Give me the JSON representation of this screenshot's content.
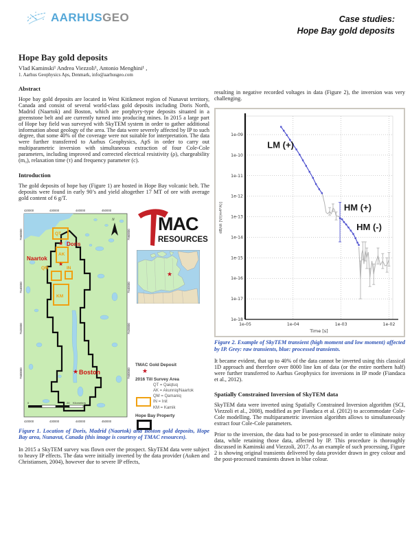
{
  "header": {
    "brand_primary": "AARHUS",
    "brand_secondary": "GEO",
    "brand_primary_color": "#54a7d8",
    "brand_secondary_color": "#8f8f8f",
    "logo_icon": "aarhusgeo-sketch-icon",
    "doc_title_line1": "Case studies:",
    "doc_title_line2": "Hope Bay gold deposits"
  },
  "article": {
    "title": "Hope Bay gold deposits",
    "authors": "Vlad Kaminski¹ Andrea Viezzoli¹, Antonio Menghini¹ ,",
    "affiliation": "1. Aarhus Geophysics Aps, Denmark, info@aarhusgeo.com"
  },
  "sections": {
    "abstract_heading": "Abstract",
    "abstract_text": "Hope bay gold deposits are located in West Kitikmeot region of Nunavut territory, Canada and consist of several world-class gold deposits including Doris North, Madrid (Naartok) and Boston, which are porphyry-type deposits situated in a greenstone belt and are currently turned into producing mines. In 2015 a large part of Hope bay field was surveyed with SkyTEM system in order to gather additional information about geology of the area. The data were severely affected by IP to such degree, that some 40% of the coverage were not suitable for interpretation. The data were further transferred to Aarhus Geophysics, ApS in order to carry out multiparametric inversion with simultaneous extraction of four Cole-Cole parameters, including improved and corrected electrical resistivity (ρ), chargeability (m₀), relaxation time (τ) and frequency parameter (c).",
    "intro_heading": "Introduction",
    "intro_text": "The gold deposits of hope bay (Figure 1) are hosted in Hope Bay volcanic belt. The deposits were found in early 90’s and yield altogether 17 MT of ore with average gold content of 6 g/T.",
    "left_para2": "In 2015 a SkyTEM survey was flown over the prospect. SkyTEM data were subject to heavy IP effects. The data were initially inverted by the data provider (Auken and Christiansen, 2004), however due to severe IP effects,",
    "right_para1": "resulting in negative recorded voltages in data (Figure 2), the inversion was very challenging.",
    "right_para2": "It became evident, that up to 40% of the data cannot be inverted using this classical 1D approach and therefore over 8000 line km of data (or the entire northern half) were further transferred to Aarhus Geophysics for inversions in IP mode (Fiandaca et al., 2012).",
    "sci_heading": "Spatially Constrained Inversion of SkyTEM data",
    "right_para3": "SkyTEM data were inverted using Spatially Constrained Inversion algorithm (SCI, Viezzoli et al., 2008), modified as per Fiandaca et al. (2012) to accommodate Cole-Cole modelling. The multiparametric inversion algorithm allows to simultaneously extract four Cole-Cole parameters.",
    "right_para4": "Prior to the inversion, the data had to be post-processed in order to eliminate noisy data, while retaining those data, affected by IP. This procedure is thoroughly discussed in Kaminski and Viezzoli, 2017. As an example of such processing, Figure 2 is showing original transients delivered by data provider drawn in grey colour and the post-processed transients drawn in blue colour."
  },
  "figure1": {
    "caption": "Figure 1. Location of Doris, Madrid (Naartok) and Boston gold deposits, Hope Bay area, Nunavut, Canada (this image is courtesy of TMAC resources).",
    "map": {
      "x_ticks": [
        "420000",
        "430000",
        "440000",
        "450000"
      ],
      "y_ticks": [
        "7560000",
        "7540000",
        "7520000",
        "7500000"
      ],
      "north_label": "N",
      "deposits": {
        "doris": "Doris",
        "naartok": "Naartok",
        "boston": "Boston"
      },
      "areas": {
        "qt": "QT",
        "ak": "AK",
        "qm": "QM",
        "in": "IN",
        "km": "KM"
      },
      "scale": {
        "zero": "0",
        "twenty": "20",
        "unit": "Kilometers"
      },
      "land_color": "#c9ecb4",
      "water_color": "#a3d5ec",
      "area_color": "#f0a010",
      "deposit_color": "#cc1111"
    },
    "tmac_logo": {
      "mac": "MAC",
      "resources": "RESOURCES",
      "pick_color": "#c42127"
    },
    "legend": {
      "gold_deposit": "TMAC Gold Deposit",
      "survey_area": "2016 Till Survey Area",
      "items": [
        "QT = Qaiqtuq",
        "AK = Akunniq/Naartok",
        "QM = Qamaniq",
        "IN = Init",
        "KM = Kamik"
      ],
      "property": "Hope Bay Property"
    }
  },
  "figure2": {
    "caption": "Figure 2. Example of SkyTEM transient (high moment and low moment) affected by IP. Grey: raw transients, blue: processed transients."
  },
  "chart_data": {
    "type": "line",
    "title": "",
    "xlabel": "Time [s]",
    "ylabel": "dB/dt [V/(m4*A)]",
    "xscale": "log",
    "yscale": "log",
    "xlim": [
      1e-05,
      0.012
    ],
    "ylim": [
      1e-18,
      8e-09
    ],
    "grid": true,
    "x_tick_values": [
      1e-05,
      0.0001,
      0.001,
      0.01
    ],
    "x_tick_labels": [
      "1e-05",
      "1e-04",
      "1e-03",
      "1e-02"
    ],
    "y_tick_values": [
      1e-09,
      1e-10,
      1e-11,
      1e-12,
      1e-13,
      1e-14,
      1e-15,
      1e-16,
      1e-17,
      1e-18
    ],
    "y_tick_labels": [
      "1e-09",
      "1e-10",
      "1e-11",
      "1e-12",
      "1e-13",
      "1e-14",
      "1e-15",
      "1e-16",
      "1e-17",
      "1e-18"
    ],
    "annotations": [
      {
        "text": "LM (+)",
        "x": 2.9e-05,
        "y": 2.2e-10
      },
      {
        "text": "HM (+)",
        "x": 0.00115,
        "y": 2e-13
      },
      {
        "text": "HM (-)",
        "x": 0.0021,
        "y": 2.2e-14
      }
    ],
    "series": [
      {
        "name": "raw transient mid (grey)",
        "color": "#b2b2b2",
        "marker": false,
        "points": [
          [
            0.0004,
            1.5e-12
          ],
          [
            0.00045,
            5e-13
          ],
          [
            0.00049,
            1.6e-13
          ],
          [
            0.00053,
            1.4e-13
          ],
          [
            0.00058,
            1.8e-13
          ],
          [
            0.00063,
            1.4e-13
          ],
          [
            0.00068,
            2.7e-13
          ],
          [
            0.00073,
            2.2e-13
          ],
          [
            0.00079,
            1.1e-13
          ],
          [
            0.00088,
            1.05e-13
          ],
          [
            0.00096,
            9e-14
          ]
        ]
      },
      {
        "name": "raw transient tail (grey)",
        "color": "#b2b2b2",
        "marker": false,
        "points": [
          [
            0.00235,
            3.5e-15
          ],
          [
            0.00255,
            9e-17
          ],
          [
            0.0027,
            1.6e-15
          ],
          [
            0.00285,
            2.4e-15
          ],
          [
            0.003,
            5e-16
          ],
          [
            0.0032,
            2.2e-15
          ],
          [
            0.00345,
            1e-15
          ],
          [
            0.0037,
            1.9e-15
          ],
          [
            0.004,
            1.1e-16
          ],
          [
            0.0044,
            7e-16
          ],
          [
            0.0048,
            1.6e-16
          ],
          [
            0.0053,
            6e-16
          ],
          [
            0.0059,
            1.3e-15
          ],
          [
            0.0066,
            4.5e-16
          ],
          [
            0.0074,
            7e-16
          ],
          [
            0.0083,
            4e-16
          ],
          [
            0.0091,
            4.5e-16
          ],
          [
            0.01,
            8e-16
          ]
        ]
      },
      {
        "name": "processed LM transient (blue)",
        "color": "#5053cf",
        "marker": true,
        "points": [
          [
            5.6e-05,
            2.4e-09
          ],
          [
            6.4e-05,
            1.55e-09
          ],
          [
            7.4e-05,
            9.5e-10
          ],
          [
            8.6e-05,
            5.6e-10
          ],
          [
            0.0001,
            3.3e-10
          ],
          [
            0.000117,
            1.9e-10
          ],
          [
            0.000137,
            1.05e-10
          ],
          [
            0.00016,
            5.6e-11
          ],
          [
            0.000187,
            3e-11
          ],
          [
            0.00022,
            1.55e-11
          ],
          [
            0.00026,
            7.8e-12
          ],
          [
            0.0003,
            3.9e-12
          ],
          [
            0.00035,
            2.2e-12
          ],
          [
            0.0004,
            1.4e-12
          ]
        ]
      },
      {
        "name": "processed HM transient (blue)",
        "color": "#5053cf",
        "marker": true,
        "points": [
          [
            0.00095,
            8.5e-14
          ],
          [
            0.00105,
            7.5e-14
          ],
          [
            0.00115,
            5.5e-14
          ],
          [
            0.00128,
            4.2e-14
          ],
          [
            0.00143,
            3e-14
          ],
          [
            0.0016,
            2.1e-14
          ],
          [
            0.0018,
            1.45e-14
          ],
          [
            0.002,
            9e-15
          ],
          [
            0.0022,
            5.5e-15
          ],
          [
            0.00235,
            4.2e-15
          ]
        ]
      }
    ],
    "error_bars": [
      {
        "x": 0.00095,
        "ylo": 6e-15,
        "yhi": 5e-13,
        "color": "#5053cf"
      },
      {
        "x": 0.00058,
        "ylo": 1.2e-13,
        "yhi": 2.8e-13,
        "color": "#b2b2b2"
      },
      {
        "x": 0.00068,
        "ylo": 1.8e-13,
        "yhi": 4.2e-13,
        "color": "#b2b2b2"
      },
      {
        "x": 0.00079,
        "ylo": 7e-14,
        "yhi": 1.7e-13,
        "color": "#b2b2b2"
      },
      {
        "x": 0.00255,
        "ylo": 1e-17,
        "yhi": 7e-16,
        "color": "#b2b2b2"
      },
      {
        "x": 0.00285,
        "ylo": 8e-16,
        "yhi": 6e-15,
        "color": "#b2b2b2"
      },
      {
        "x": 0.0032,
        "ylo": 7e-16,
        "yhi": 6e-15,
        "color": "#b2b2b2"
      },
      {
        "x": 0.00345,
        "ylo": 3e-16,
        "yhi": 3e-15,
        "color": "#b2b2b2"
      },
      {
        "x": 0.004,
        "ylo": 4e-17,
        "yhi": 3e-16,
        "color": "#b2b2b2"
      },
      {
        "x": 0.0048,
        "ylo": 5e-17,
        "yhi": 5e-16,
        "color": "#b2b2b2"
      },
      {
        "x": 0.0059,
        "ylo": 5e-16,
        "yhi": 3e-15,
        "color": "#b2b2b2"
      },
      {
        "x": 0.0074,
        "ylo": 3e-16,
        "yhi": 1.6e-15,
        "color": "#b2b2b2"
      },
      {
        "x": 0.0091,
        "ylo": 2e-16,
        "yhi": 1e-15,
        "color": "#b2b2b2"
      },
      {
        "x": 0.01,
        "ylo": 4e-16,
        "yhi": 1.8e-15,
        "color": "#b2b2b2"
      }
    ]
  }
}
